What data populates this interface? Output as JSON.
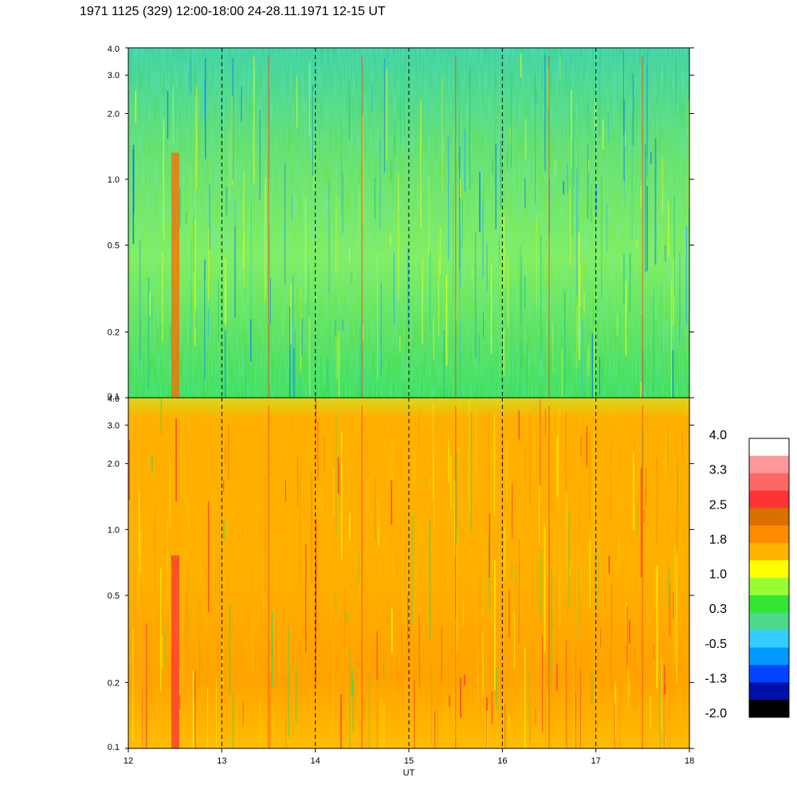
{
  "title": "1971 1125 (329) 12:00-18:00 24-28.11.1971  12-15 UT",
  "chart_data": [
    {
      "type": "heatmap",
      "name": "upper-panel",
      "x_range": [
        12,
        18
      ],
      "y_range": [
        0.1,
        4.0
      ],
      "y_scale": "log",
      "x_ticks": [
        "12",
        "13",
        "14",
        "15",
        "16",
        "17",
        "18"
      ],
      "y_ticks": [
        "0.1",
        "0.2",
        "0.5",
        "1.0",
        "2.0",
        "3.0",
        "4.0"
      ],
      "y_tick_values": [
        0.1,
        0.2,
        0.5,
        1.0,
        2.0,
        3.0,
        4.0
      ],
      "dashed_hour_lines": [
        13,
        14,
        15,
        16,
        17
      ],
      "typical_level": 0.4
    },
    {
      "type": "heatmap",
      "name": "lower-panel",
      "x_range": [
        12,
        18
      ],
      "y_range": [
        0.1,
        4.0
      ],
      "y_scale": "log",
      "x_ticks": [
        "12",
        "13",
        "14",
        "15",
        "16",
        "17",
        "18"
      ],
      "y_ticks": [
        "0.1",
        "0.2",
        "0.5",
        "1.0",
        "2.0",
        "3.0",
        "4.0"
      ],
      "y_tick_values": [
        0.1,
        0.2,
        0.5,
        1.0,
        2.0,
        3.0,
        4.0
      ],
      "xlabel": "UT",
      "dashed_hour_lines": [
        13,
        14,
        15,
        16,
        17
      ],
      "typical_level": 1.8
    }
  ],
  "colorbar": {
    "labels": [
      "4.0",
      "3.3",
      "2.5",
      "1.8",
      "1.0",
      "0.3",
      "-0.5",
      "-1.3",
      "-2.0"
    ],
    "colors_top_to_bottom": [
      "#ffffff",
      "#ff9999",
      "#ff6666",
      "#ff3333",
      "#d97000",
      "#ff8c00",
      "#ffb400",
      "#ffff00",
      "#99ff33",
      "#33e633",
      "#4dd98c",
      "#33ccff",
      "#0099ff",
      "#0044ff",
      "#0010aa",
      "#000000"
    ]
  }
}
